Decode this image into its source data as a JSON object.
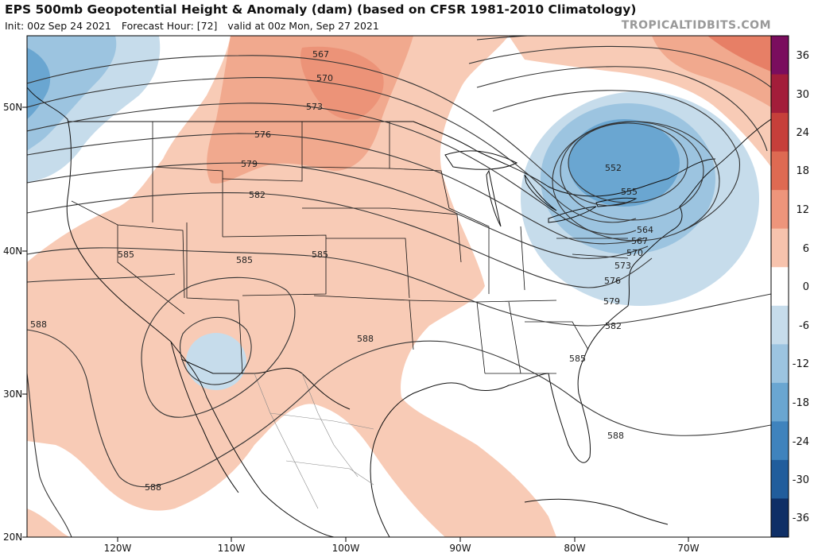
{
  "header": {
    "title": "EPS 500mb Geopotential Height & Anomaly (dam) (based on CFSR 1981-2010 Climatology)",
    "init": "Init: 00z Sep 24 2021",
    "forecast_hour": "Forecast Hour: [72]",
    "valid": "valid at 00z Mon, Sep 27 2021",
    "site": "TROPICALTIDBITS.COM"
  },
  "latitude_labels": [
    "50N",
    "40N",
    "30N",
    "20N"
  ],
  "longitude_labels": [
    "120W",
    "110W",
    "100W",
    "90W",
    "80W",
    "70W"
  ],
  "contour_labels": [
    "567",
    "570",
    "573",
    "576",
    "579",
    "582",
    "585",
    "585",
    "585",
    "588",
    "588",
    "588",
    "588",
    "552",
    "555",
    "564",
    "567",
    "570",
    "573",
    "576",
    "579",
    "582",
    "585"
  ],
  "colorbar": {
    "labels": [
      "36",
      "30",
      "24",
      "18",
      "12",
      "6",
      "0",
      "-6",
      "-12",
      "-18",
      "-24",
      "-30",
      "-36"
    ],
    "colors": [
      "#7a0d5e",
      "#a31d3a",
      "#c63f3a",
      "#de6a52",
      "#ee957b",
      "#f7c3ad",
      "#ffffff",
      "#c6dceb",
      "#9cc4e0",
      "#6aa6d1",
      "#3f83bd",
      "#215d9c",
      "#0f2f66"
    ]
  }
}
